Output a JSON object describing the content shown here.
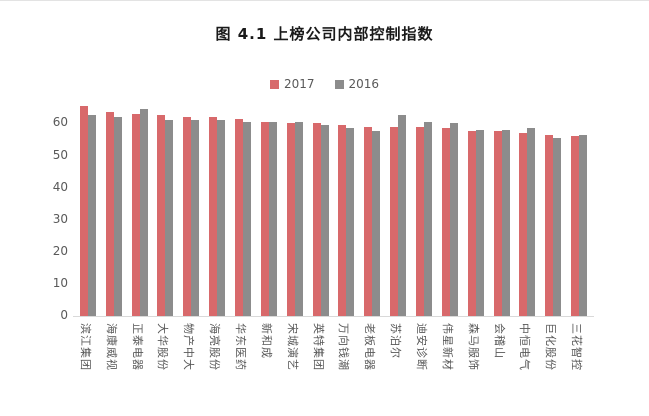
{
  "figure": {
    "title": "图 4.1  上榜公司内部控制指数"
  },
  "chart_data": {
    "type": "bar",
    "title": "图 4.1  上榜公司内部控制指数",
    "categories": [
      "滨江集团",
      "海康威视",
      "正泰电器",
      "大华股份",
      "物产中大",
      "海亮股份",
      "华东医药",
      "新和成",
      "宋城演艺",
      "英特集团",
      "万向钱潮",
      "老板电器",
      "苏泊尔",
      "迪安诊断",
      "伟星新材",
      "森马服饰",
      "会稽山",
      "中恒电气",
      "巨化股份",
      "三花智控"
    ],
    "series": [
      {
        "name": "2017",
        "color": "#D8696B",
        "values": [
          65.5,
          63.5,
          63,
          62.5,
          62,
          62,
          61.5,
          60.5,
          60,
          60,
          59.5,
          59,
          59,
          59,
          58.5,
          57.5,
          57.5,
          57,
          56.5,
          56
        ]
      },
      {
        "name": "2016",
        "color": "#8C8C8C",
        "values": [
          62.5,
          62,
          64.5,
          61,
          61,
          61,
          60.5,
          60.5,
          60.5,
          59.5,
          58.5,
          57.5,
          62.5,
          60.5,
          60,
          58,
          58,
          58.5,
          55.5,
          56.5
        ]
      }
    ],
    "xlabel": "",
    "ylabel": "",
    "ylim": [
      0,
      67
    ],
    "yticks": [
      0,
      10,
      20,
      30,
      40,
      50,
      60
    ],
    "legend_position": "top",
    "grid": false,
    "axis_text_color": "#595959",
    "baseline_color": "#D9D9D9"
  }
}
